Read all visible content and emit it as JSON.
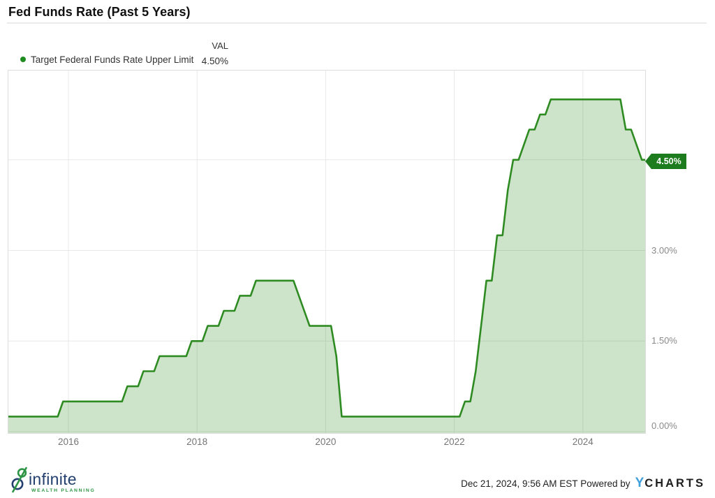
{
  "header": {
    "title": "Fed Funds Rate (Past 5 Years)"
  },
  "legend": {
    "series_label": "Target Federal Funds Rate Upper Limit",
    "val_header": "VAL",
    "val": "4.50%",
    "dot_color": "#1e8c1e"
  },
  "chart_data": {
    "type": "area",
    "title": "Fed Funds Rate (Past 5 Years)",
    "xlabel": "",
    "ylabel": "",
    "grid": true,
    "legend_position": "top-left",
    "ylim": [
      0,
      6
    ],
    "x_ticks": [
      {
        "year": 2016,
        "label": "2016"
      },
      {
        "year": 2018,
        "label": "2018"
      },
      {
        "year": 2020,
        "label": "2020"
      },
      {
        "year": 2022,
        "label": "2022"
      },
      {
        "year": 2024,
        "label": "2024"
      }
    ],
    "y_ticks": [
      {
        "value": 0,
        "label": "0.00%"
      },
      {
        "value": 1.5,
        "label": "1.50%"
      },
      {
        "value": 3,
        "label": "3.00%"
      }
    ],
    "current": {
      "value": 4.5,
      "label": "4.50%",
      "axis_label": "4.50%"
    },
    "line_color": "#2e8b22",
    "fill_color": "rgba(46,139,34,0.24)",
    "badge_color": "#1d7c1d",
    "grid_color": "#e8e8e8",
    "series": [
      {
        "name": "Target Federal Funds Rate Upper Limit",
        "start": "2015-01",
        "end": "2024-12",
        "frequency": "monthly",
        "unit": "%",
        "values": [
          0.25,
          0.25,
          0.25,
          0.25,
          0.25,
          0.25,
          0.25,
          0.25,
          0.25,
          0.25,
          0.25,
          0.5,
          0.5,
          0.5,
          0.5,
          0.5,
          0.5,
          0.5,
          0.5,
          0.5,
          0.5,
          0.5,
          0.5,
          0.75,
          0.75,
          0.75,
          1.0,
          1.0,
          1.0,
          1.25,
          1.25,
          1.25,
          1.25,
          1.25,
          1.25,
          1.5,
          1.5,
          1.5,
          1.75,
          1.75,
          1.75,
          2.0,
          2.0,
          2.0,
          2.25,
          2.25,
          2.25,
          2.5,
          2.5,
          2.5,
          2.5,
          2.5,
          2.5,
          2.5,
          2.5,
          2.25,
          2.0,
          1.75,
          1.75,
          1.75,
          1.75,
          1.75,
          1.25,
          0.25,
          0.25,
          0.25,
          0.25,
          0.25,
          0.25,
          0.25,
          0.25,
          0.25,
          0.25,
          0.25,
          0.25,
          0.25,
          0.25,
          0.25,
          0.25,
          0.25,
          0.25,
          0.25,
          0.25,
          0.25,
          0.25,
          0.25,
          0.5,
          0.5,
          1.0,
          1.75,
          2.5,
          2.5,
          3.25,
          3.25,
          4.0,
          4.5,
          4.5,
          4.75,
          5.0,
          5.0,
          5.25,
          5.25,
          5.5,
          5.5,
          5.5,
          5.5,
          5.5,
          5.5,
          5.5,
          5.5,
          5.5,
          5.5,
          5.5,
          5.5,
          5.5,
          5.5,
          5.0,
          5.0,
          4.75,
          4.5
        ]
      }
    ]
  },
  "footer": {
    "logo_word": "infinite",
    "logo_subtext": "WEALTH PLANNING",
    "timestamp": "Dec 21, 2024, 9:56 AM EST",
    "powered_by": "Powered by",
    "ycharts_y": "Y",
    "ycharts_rest": "CHARTS",
    "ycharts_y_color": "#3fa0dc",
    "logo_word_color": "#23406e",
    "logo_sub_color": "#2f9546"
  }
}
